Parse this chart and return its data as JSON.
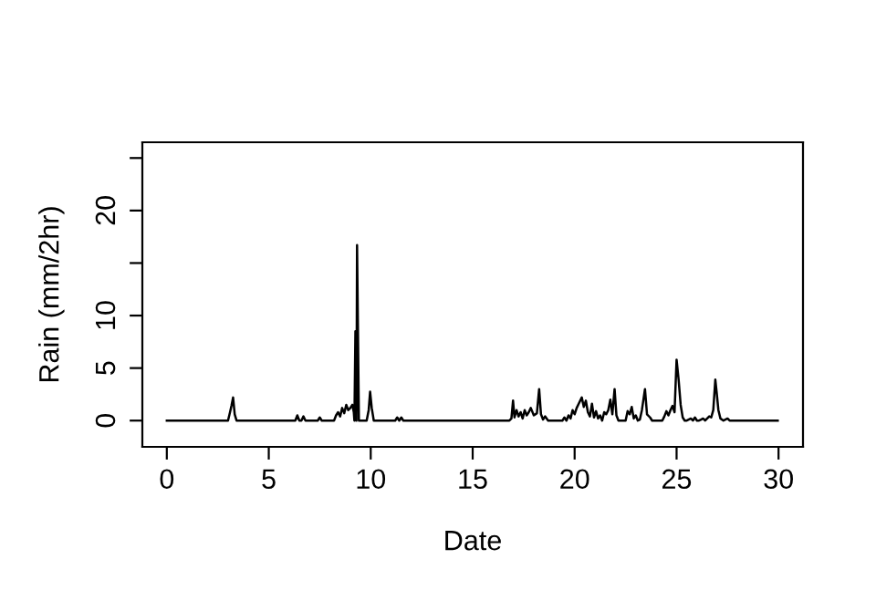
{
  "chart_data": {
    "type": "line",
    "xlabel": "Date",
    "ylabel": "Rain (mm/2hr)",
    "x": [
      0,
      3.0,
      3.1,
      3.17,
      3.25,
      3.33,
      3.42,
      6.3,
      6.4,
      6.5,
      6.6,
      6.7,
      6.8,
      7.4,
      7.5,
      7.6,
      8.2,
      8.3,
      8.4,
      8.5,
      8.6,
      8.7,
      8.8,
      8.9,
      9.0,
      9.1,
      9.17,
      9.2,
      9.25,
      9.3,
      9.33,
      9.42,
      9.8,
      9.9,
      9.97,
      10.05,
      10.15,
      10.3,
      11.2,
      11.3,
      11.4,
      11.5,
      11.6,
      16.8,
      16.9,
      16.98,
      17.05,
      17.15,
      17.25,
      17.35,
      17.45,
      17.55,
      17.65,
      17.75,
      17.85,
      18.0,
      18.15,
      18.26,
      18.35,
      18.45,
      18.55,
      18.7,
      19.4,
      19.5,
      19.6,
      19.7,
      19.8,
      19.9,
      20.0,
      20.1,
      20.2,
      20.35,
      20.45,
      20.55,
      20.65,
      20.75,
      20.85,
      20.95,
      21.05,
      21.15,
      21.25,
      21.35,
      21.45,
      21.55,
      21.65,
      21.75,
      21.85,
      21.96,
      22.05,
      22.15,
      22.25,
      22.5,
      22.6,
      22.7,
      22.8,
      22.9,
      23.0,
      23.1,
      23.2,
      23.3,
      23.45,
      23.55,
      23.7,
      23.8,
      23.9,
      24.3,
      24.4,
      24.5,
      24.6,
      24.7,
      24.8,
      24.9,
      25.0,
      25.1,
      25.2,
      25.3,
      25.4,
      25.5,
      25.7,
      25.8,
      25.9,
      26.0,
      26.1,
      26.2,
      26.3,
      26.4,
      26.6,
      26.7,
      26.8,
      26.9,
      26.97,
      27.05,
      27.15,
      27.3,
      27.5,
      27.6,
      27.7,
      29.96
    ],
    "values": [
      0,
      0,
      0.8,
      1.4,
      2.2,
      0.6,
      0,
      0,
      0.5,
      0,
      0,
      0.4,
      0,
      0,
      0.3,
      0,
      0,
      0.5,
      0.8,
      0.4,
      1.2,
      0.7,
      1.5,
      1.0,
      1.2,
      1.5,
      0.8,
      0,
      8.5,
      0,
      16.7,
      0,
      0,
      1.0,
      2.75,
      1.2,
      0,
      0,
      0,
      0.3,
      0,
      0.3,
      0,
      0,
      0.2,
      1.9,
      0.3,
      1.0,
      0.4,
      0.8,
      0.2,
      1.0,
      0.5,
      0.8,
      1.2,
      0.5,
      0.7,
      3.0,
      0.6,
      0.1,
      0.4,
      0,
      0,
      0.3,
      0,
      0.5,
      0.2,
      1.0,
      0.6,
      1.2,
      1.6,
      2.2,
      1.3,
      1.9,
      0.8,
      0.4,
      1.6,
      0.3,
      0.9,
      0.2,
      0.5,
      0,
      0.8,
      0.6,
      1.0,
      2.0,
      0.6,
      3.0,
      0.5,
      0,
      0,
      0,
      0.9,
      0.6,
      1.3,
      0.2,
      0.5,
      0,
      0.1,
      1.0,
      3.0,
      0.6,
      0.3,
      0,
      0,
      0,
      0.4,
      0.9,
      0.5,
      1.0,
      1.4,
      0.8,
      5.8,
      3.9,
      1.5,
      0.3,
      0,
      0,
      0.2,
      0,
      0.3,
      0,
      0,
      0.1,
      0.2,
      0,
      0.4,
      0.3,
      1.0,
      3.9,
      2.6,
      1.0,
      0.2,
      0,
      0.2,
      0,
      0,
      0
    ],
    "color": "#000000",
    "xlim": [
      -1.2,
      31.2
    ],
    "ylim": [
      -2.5,
      26.5
    ],
    "xticks": [
      0,
      5,
      10,
      15,
      20,
      25,
      30
    ],
    "yticks": [
      0,
      5,
      10,
      {
        "value": 15,
        "label": null
      },
      20,
      {
        "value": 25,
        "label": null
      }
    ],
    "grid": false,
    "legend": false,
    "marker": "none",
    "line_style": "solid"
  }
}
